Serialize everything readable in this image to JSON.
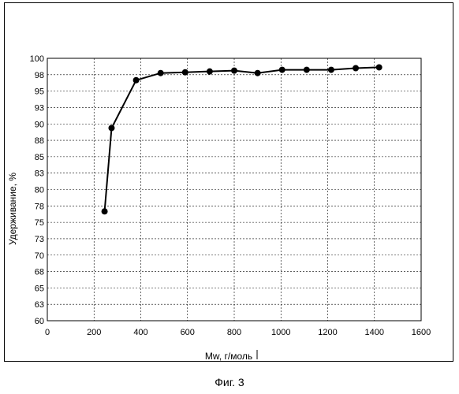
{
  "figure": {
    "caption": "Фиг. 3"
  },
  "chart_data": {
    "type": "line",
    "xlabel": "Mw, г/моль",
    "ylabel": "Удерживание, %",
    "xlim": [
      0,
      1600
    ],
    "ylim": [
      60,
      100
    ],
    "x_ticks": [
      "0",
      "200",
      "400",
      "600",
      "800",
      "1000",
      "1200",
      "1400",
      "1600"
    ],
    "y_ticks": [
      "60",
      "63",
      "65",
      "68",
      "70",
      "73",
      "75",
      "78",
      "80",
      "83",
      "85",
      "88",
      "90",
      "93",
      "95",
      "98",
      "100"
    ],
    "grid": "dashed",
    "marker": "filled-circle",
    "series": [
      {
        "x": [
          245,
          275,
          380,
          485,
          590,
          695,
          800,
          900,
          1005,
          1110,
          1215,
          1320,
          1420
        ],
        "y": [
          77.0,
          89.5,
          97.0,
          98.2,
          98.3,
          98.4,
          98.5,
          98.2,
          98.6,
          98.6,
          98.6,
          98.8,
          98.9
        ]
      }
    ]
  }
}
